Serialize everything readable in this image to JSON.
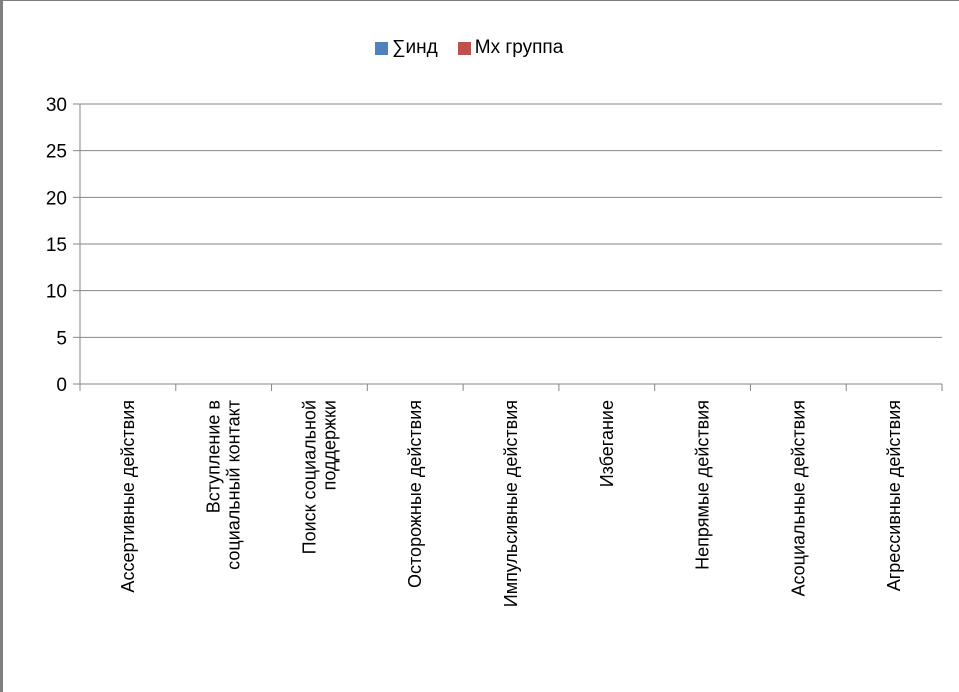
{
  "chart_data": {
    "type": "bar",
    "title": "",
    "xlabel": "",
    "ylabel": "",
    "ylim": [
      0,
      30
    ],
    "yticks": [
      0,
      5,
      10,
      15,
      20,
      25,
      30
    ],
    "grid": true,
    "legend_position": "top",
    "categories": [
      [
        "Ассертивные действия"
      ],
      [
        "Вступление в",
        "социальный контакт"
      ],
      [
        "Поиск социальной",
        "поддержки"
      ],
      [
        "Осторожные действия"
      ],
      [
        "Импульсивные действия"
      ],
      [
        "Избегание"
      ],
      [
        "Непрямые действия"
      ],
      [
        "Асоциальные действия"
      ],
      [
        "Агрессивные действия"
      ]
    ],
    "series": [
      {
        "name": "∑инд",
        "color": "#4f81bd",
        "values": [
          null,
          null,
          null,
          null,
          null,
          null,
          null,
          null,
          null
        ]
      },
      {
        "name": "Мх группа",
        "color": "#c0504d",
        "values": [
          null,
          null,
          null,
          null,
          null,
          null,
          null,
          null,
          null
        ]
      }
    ]
  }
}
